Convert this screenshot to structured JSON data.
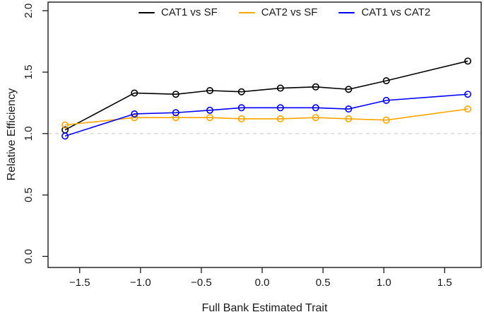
{
  "chart_data": {
    "type": "line",
    "title": "",
    "xlabel": "Full Bank Estimated Trait",
    "ylabel": "Relative Efficiency",
    "x": [
      -1.62,
      -1.05,
      -0.71,
      -0.43,
      -0.17,
      0.15,
      0.44,
      0.71,
      1.02,
      1.69
    ],
    "series": [
      {
        "name": "CAT1 vs SF",
        "color": "#000000",
        "values": [
          1.03,
          1.33,
          1.32,
          1.35,
          1.34,
          1.37,
          1.38,
          1.36,
          1.43,
          1.59
        ]
      },
      {
        "name": "CAT2 vs SF",
        "color": "#FFA500",
        "values": [
          1.07,
          1.13,
          1.13,
          1.13,
          1.12,
          1.12,
          1.13,
          1.12,
          1.11,
          1.2
        ]
      },
      {
        "name": "CAT1 vs CAT2",
        "color": "#0000FF",
        "values": [
          0.98,
          1.16,
          1.17,
          1.19,
          1.21,
          1.21,
          1.21,
          1.2,
          1.27,
          1.32
        ]
      }
    ],
    "xticks": [
      -1.5,
      -1.0,
      -0.5,
      0.0,
      0.5,
      1.0,
      1.5
    ],
    "yticks": [
      0.0,
      0.5,
      1.0,
      1.5,
      2.0
    ],
    "xlim": [
      -1.76,
      1.8
    ],
    "ylim": [
      -0.09,
      2.07
    ],
    "reference_line_y": 1.0,
    "reference_line_color": "#D3D3D3",
    "axis_color": "#1A1A1A",
    "legend_position": "top",
    "grid": false,
    "marker": "open-circle"
  }
}
